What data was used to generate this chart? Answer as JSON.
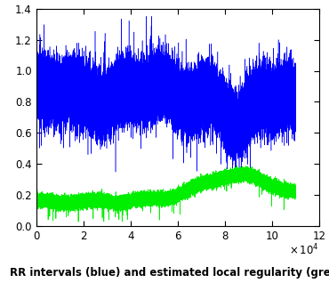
{
  "title": "",
  "xlabel": "",
  "ylabel": "",
  "caption": "RR intervals (blue) and estimated local regularity (green).",
  "xlim": [
    0,
    120000
  ],
  "ylim": [
    0,
    1.4
  ],
  "yticks": [
    0,
    0.2,
    0.4,
    0.6,
    0.8,
    1.0,
    1.2,
    1.4
  ],
  "xticks": [
    0,
    20000,
    40000,
    60000,
    80000,
    100000,
    120000
  ],
  "xticklabels": [
    "0",
    "2",
    "4",
    "6",
    "8",
    "10",
    "12"
  ],
  "x_exp_label": "x 10^4",
  "blue_color": "#0000FF",
  "green_color": "#00EE00",
  "background": "#FFFFFF",
  "n_points": 110000,
  "seed": 7
}
